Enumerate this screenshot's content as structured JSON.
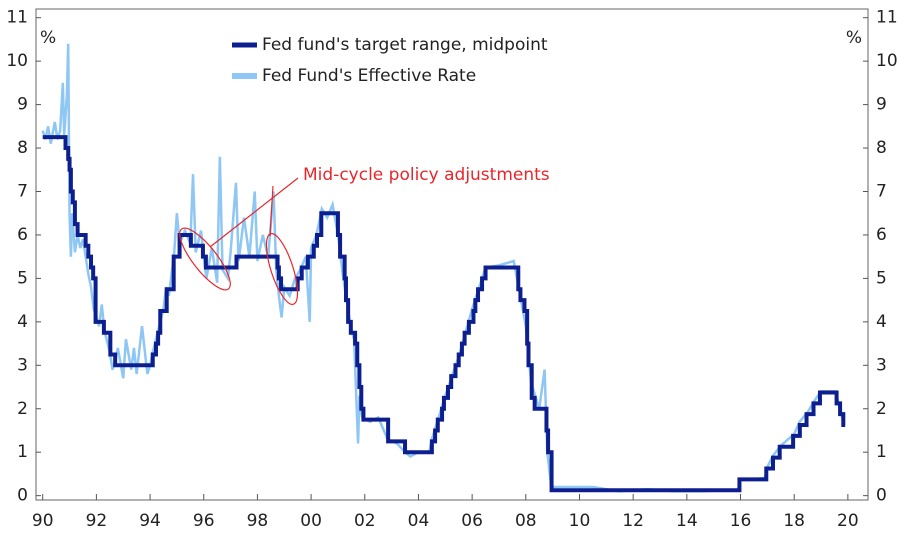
{
  "chart_data": {
    "type": "line",
    "y_label": "%",
    "y2_label": "%",
    "annotation": "Mid-cycle policy adjustments",
    "annotation_color": "#e8262a",
    "xlim": [
      1989.75,
      2020.75
    ],
    "xticks": [
      {
        "value": 1990,
        "label": "90"
      },
      {
        "value": 1992,
        "label": "92"
      },
      {
        "value": 1994,
        "label": "94"
      },
      {
        "value": 1996,
        "label": "96"
      },
      {
        "value": 1998,
        "label": "98"
      },
      {
        "value": 2000,
        "label": "00"
      },
      {
        "value": 2002,
        "label": "02"
      },
      {
        "value": 2004,
        "label": "04"
      },
      {
        "value": 2006,
        "label": "06"
      },
      {
        "value": 2008,
        "label": "08"
      },
      {
        "value": 2010,
        "label": "10"
      },
      {
        "value": 2012,
        "label": "12"
      },
      {
        "value": 2014,
        "label": "14"
      },
      {
        "value": 2016,
        "label": "16"
      },
      {
        "value": 2018,
        "label": "18"
      },
      {
        "value": 2020,
        "label": "20"
      }
    ],
    "ylim": [
      -0.1,
      11.2
    ],
    "yticks": [
      0,
      1,
      2,
      3,
      4,
      5,
      6,
      7,
      8,
      9,
      10,
      11
    ],
    "y2lim": [
      -0.1,
      11.2
    ],
    "y2ticks": [
      0,
      1,
      2,
      3,
      4,
      5,
      6,
      7,
      8,
      9,
      10,
      11
    ],
    "grid": false,
    "series": [
      {
        "name": "Fed fund's target range, midpoint",
        "color": "#0d1f8f",
        "width": 4,
        "step": true,
        "x": [
          1990.0,
          1990.85,
          1990.95,
          1991.0,
          1991.05,
          1991.12,
          1991.2,
          1991.3,
          1991.6,
          1991.7,
          1991.8,
          1991.88,
          1991.97,
          1992.28,
          1992.52,
          1992.7,
          1994.1,
          1994.22,
          1994.3,
          1994.38,
          1994.62,
          1994.88,
          1995.1,
          1995.52,
          1995.97,
          1996.08,
          1997.22,
          1998.75,
          1998.8,
          1998.88,
          1999.5,
          1999.65,
          1999.88,
          2000.1,
          2000.22,
          2000.38,
          2001.0,
          2001.08,
          2001.25,
          2001.3,
          2001.38,
          2001.48,
          2001.64,
          2001.72,
          2001.8,
          2001.87,
          2001.95,
          2002.87,
          2003.5,
          2004.5,
          2004.62,
          2004.72,
          2004.88,
          2004.95,
          2005.1,
          2005.22,
          2005.38,
          2005.5,
          2005.62,
          2005.72,
          2005.88,
          2006.05,
          2006.12,
          2006.22,
          2006.37,
          2006.5,
          2007.72,
          2007.8,
          2007.95,
          2008.05,
          2008.1,
          2008.22,
          2008.33,
          2008.77,
          2008.83,
          2008.96,
          2015.96,
          2016.96,
          2017.21,
          2017.46,
          2017.96,
          2018.21,
          2018.46,
          2018.72,
          2018.96,
          2019.58,
          2019.71,
          2019.83,
          2019.9
        ],
        "values": [
          8.25,
          8.0,
          7.75,
          7.5,
          7.0,
          6.75,
          6.25,
          6.0,
          5.75,
          5.5,
          5.25,
          5.0,
          4.0,
          3.75,
          3.25,
          3.0,
          3.25,
          3.5,
          3.75,
          4.25,
          4.75,
          5.5,
          6.0,
          5.75,
          5.5,
          5.25,
          5.5,
          5.25,
          5.0,
          4.75,
          5.0,
          5.25,
          5.5,
          5.75,
          6.0,
          6.5,
          6.0,
          5.5,
          5.0,
          4.5,
          4.0,
          3.75,
          3.5,
          3.0,
          2.5,
          2.0,
          1.75,
          1.25,
          1.0,
          1.25,
          1.5,
          1.75,
          2.0,
          2.25,
          2.5,
          2.75,
          3.0,
          3.25,
          3.5,
          3.75,
          4.0,
          4.25,
          4.5,
          4.75,
          5.0,
          5.25,
          4.75,
          4.5,
          4.25,
          3.5,
          3.0,
          2.25,
          2.0,
          1.5,
          1.0,
          0.125,
          0.375,
          0.625,
          0.875,
          1.125,
          1.375,
          1.625,
          1.875,
          2.125,
          2.375,
          2.125,
          1.875,
          1.625,
          1.625
        ]
      },
      {
        "name": "Fed Fund's Effective Rate",
        "color": "#8ec6f4",
        "width": 2.5,
        "step": false,
        "x": [
          1990.0,
          1990.1,
          1990.2,
          1990.3,
          1990.45,
          1990.55,
          1990.65,
          1990.75,
          1990.8,
          1990.9,
          1990.95,
          1991.0,
          1991.05,
          1991.1,
          1991.2,
          1991.3,
          1991.4,
          1991.5,
          1991.6,
          1991.7,
          1991.8,
          1991.9,
          1992.0,
          1992.1,
          1992.2,
          1992.3,
          1992.5,
          1992.6,
          1992.7,
          1992.8,
          1993.0,
          1993.1,
          1993.3,
          1993.4,
          1993.5,
          1993.7,
          1993.9,
          1994.0,
          1994.1,
          1994.3,
          1994.5,
          1994.6,
          1994.7,
          1994.9,
          1995.0,
          1995.1,
          1995.3,
          1995.5,
          1995.6,
          1995.7,
          1995.9,
          1996.0,
          1996.1,
          1996.3,
          1996.5,
          1996.6,
          1996.7,
          1996.9,
          1997.0,
          1997.2,
          1997.3,
          1997.5,
          1997.7,
          1997.9,
          1998.0,
          1998.2,
          1998.4,
          1998.6,
          1998.7,
          1998.8,
          1998.9,
          1999.0,
          1999.2,
          1999.4,
          1999.6,
          1999.8,
          1999.95,
          2000.0,
          2000.2,
          2000.4,
          2000.6,
          2000.8,
          2001.0,
          2001.2,
          2001.4,
          2001.5,
          2001.6,
          2001.7,
          2001.75,
          2001.8,
          2001.9,
          2002.2,
          2002.5,
          2002.85,
          2003.2,
          2003.5,
          2003.7,
          2004.0,
          2004.4,
          2004.5,
          2005.0,
          2005.5,
          2006.0,
          2006.5,
          2007.0,
          2007.55,
          2007.7,
          2008.0,
          2008.2,
          2008.5,
          2008.7,
          2008.8,
          2008.95,
          2009.5,
          2010.5,
          2011.5,
          2012.5,
          2013.5,
          2014.5,
          2015.9,
          2016.0,
          2016.9,
          2017.0,
          2017.2,
          2017.5,
          2018.0,
          2018.2,
          2018.5,
          2018.75,
          2019.0,
          2019.55,
          2019.65,
          2019.75,
          2019.85
        ],
        "values": [
          8.4,
          8.2,
          8.5,
          8.1,
          8.6,
          8.2,
          8.4,
          9.5,
          8.3,
          9.2,
          10.4,
          6.5,
          5.5,
          6.5,
          5.6,
          6.0,
          5.7,
          5.9,
          5.5,
          5.1,
          4.8,
          4.3,
          4.1,
          3.9,
          4.4,
          3.8,
          3.3,
          2.9,
          3.1,
          3.4,
          2.7,
          3.6,
          2.9,
          3.4,
          2.8,
          3.9,
          2.8,
          3.0,
          3.3,
          3.8,
          4.3,
          4.8,
          4.6,
          5.6,
          6.5,
          5.8,
          6.1,
          5.8,
          7.4,
          5.6,
          6.1,
          5.5,
          5.0,
          5.7,
          4.9,
          7.8,
          5.2,
          5.0,
          5.6,
          7.2,
          5.4,
          6.4,
          5.5,
          7.0,
          5.4,
          6.0,
          5.5,
          7.0,
          5.2,
          4.6,
          4.1,
          4.8,
          4.6,
          5.0,
          5.2,
          5.5,
          4.0,
          5.7,
          6.0,
          6.6,
          6.4,
          6.7,
          6.0,
          5.0,
          4.2,
          3.8,
          3.6,
          2.0,
          1.2,
          2.3,
          1.8,
          1.7,
          1.8,
          1.3,
          1.2,
          1.0,
          0.9,
          1.0,
          1.0,
          1.3,
          2.3,
          3.2,
          4.3,
          5.25,
          5.3,
          5.4,
          4.9,
          3.9,
          2.6,
          2.0,
          2.9,
          1.0,
          0.2,
          0.2,
          0.2,
          0.1,
          0.15,
          0.1,
          0.1,
          0.13,
          0.37,
          0.4,
          0.66,
          0.91,
          1.15,
          1.42,
          1.7,
          1.92,
          2.18,
          2.4,
          2.4,
          2.13,
          1.9,
          1.6
        ]
      }
    ]
  }
}
